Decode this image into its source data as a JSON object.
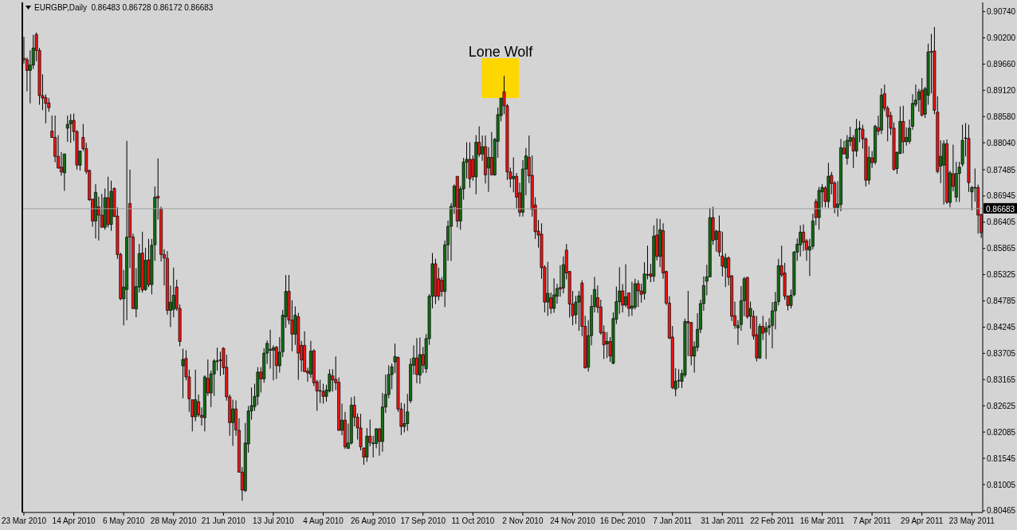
{
  "chart_data": {
    "type": "candlestick",
    "title": "EURGBP,Daily  0.86483 0.86728 0.86172 0.86683",
    "annotations": [
      "Lone Wolf"
    ],
    "colors": [
      "#f01414",
      "#f01414",
      "#116e11",
      "#116e11",
      "#f01414",
      "#f01414",
      "#f01414",
      "#f01414",
      "#f01414",
      "#f01414",
      "#f01414",
      "#f01414",
      "#f01414",
      "#116e11",
      "#116e11",
      "#116e11",
      "#f01414",
      "#f01414",
      "#116e11",
      "#f01414",
      "#f01414",
      "#f01414",
      "#f01414",
      "#116e11",
      "#f01414",
      "#f01414",
      "#116e11",
      "#f01414",
      "#116e11",
      "#f01414",
      "#f01414",
      "#f01414",
      "#116e11",
      "#116e11",
      "#f01414",
      "#f01414",
      "#116e11",
      "#116e11",
      "#f01414",
      "#116e11",
      "#f01414",
      "#116e11",
      "#116e11",
      "#f01414",
      "#f01414",
      "#f01414",
      "#f01414",
      "#116e11",
      "#116e11",
      "#f01414",
      "#f01414",
      "#116e11",
      "#f01414",
      "#f01414",
      "#f01414",
      "#116e11",
      "#f01414",
      "#f01414",
      "#116e11",
      "#f01414",
      "#116e11",
      "#116e11",
      "#116e11",
      "#116e11",
      "#f01414",
      "#f01414",
      "#f01414",
      "#116e11",
      "#f01414",
      "#f01414",
      "#f01414",
      "#116e11",
      "#116e11",
      "#116e11",
      "#116e11",
      "#116e11",
      "#f01414",
      "#116e11",
      "#116e11",
      "#116e11",
      "#116e11",
      "#f01414",
      "#116e11",
      "#116e11",
      "#116e11",
      "#f01414",
      "#f01414",
      "#116e11",
      "#f01414",
      "#f01414",
      "#f01414",
      "#f01414",
      "#116e11",
      "#f01414",
      "#f01414",
      "#f01414",
      "#f01414",
      "#116e11",
      "#116e11",
      "#f01414",
      "#f01414",
      "#f01414",
      "#116e11",
      "#f01414",
      "#116e11",
      "#116e11",
      "#f01414",
      "#f01414",
      "#f01414",
      "#f01414",
      "#116e11",
      "#f01414",
      "#116e11",
      "#116e11",
      "#f01414",
      "#116e11",
      "#116e11",
      "#116e11",
      "#116e11",
      "#116e11",
      "#f01414",
      "#f01414",
      "#116e11",
      "#116e11",
      "#116e11",
      "#116e11",
      "#f01414",
      "#116e11",
      "#f01414",
      "#116e11",
      "#116e11",
      "#116e11",
      "#f01414",
      "#f01414",
      "#f01414",
      "#116e11",
      "#116e11",
      "#116e11",
      "#116e11",
      "#f01414",
      "#116e11",
      "#116e11",
      "#116e11",
      "#f01414",
      "#f01414",
      "#116e11",
      "#f01414",
      "#116e11",
      "#f01414",
      "#116e11",
      "#f01414",
      "#116e11",
      "#116e11",
      "#116e11",
      "#f01414",
      "#f01414",
      "#f01414",
      "#116e11",
      "#f01414",
      "#f01414",
      "#116e11",
      "#116e11",
      "#f01414",
      "#f01414",
      "#f01414",
      "#f01414",
      "#f01414",
      "#f01414",
      "#116e11",
      "#f01414",
      "#116e11",
      "#116e11",
      "#f01414",
      "#116e11",
      "#f01414",
      "#f01414",
      "#f01414",
      "#116e11",
      "#116e11",
      "#f01414",
      "#f01414",
      "#116e11",
      "#116e11",
      "#116e11",
      "#f01414",
      "#f01414",
      "#f01414",
      "#116e11",
      "#f01414",
      "#116e11",
      "#116e11",
      "#116e11",
      "#f01414",
      "#116e11",
      "#f01414",
      "#116e11",
      "#116e11",
      "#f01414",
      "#f01414",
      "#116e11",
      "#116e11",
      "#f01414",
      "#116e11",
      "#f01414",
      "#116e11",
      "#f01414",
      "#f01414",
      "#f01414",
      "#f01414",
      "#116e11",
      "#116e11",
      "#116e11",
      "#116e11",
      "#f01414",
      "#f01414",
      "#116e11",
      "#116e11",
      "#116e11",
      "#116e11",
      "#116e11",
      "#116e11",
      "#f01414",
      "#116e11",
      "#f01414",
      "#f01414",
      "#116e11",
      "#f01414",
      "#f01414",
      "#f01414",
      "#116e11",
      "#116e11",
      "#116e11",
      "#f01414",
      "#116e11",
      "#f01414",
      "#f01414",
      "#116e11",
      "#f01414",
      "#116e11",
      "#116e11",
      "#116e11",
      "#116e11",
      "#116e11",
      "#f01414",
      "#f01414",
      "#f01414",
      "#116e11",
      "#116e11",
      "#116e11",
      "#116e11",
      "#f01414",
      "#f01414",
      "#116e11",
      "#116e11",
      "#f01414",
      "#116e11",
      "#116e11",
      "#f01414",
      "#116e11",
      "#f01414",
      "#f01414",
      "#116e11",
      "#116e11",
      "#f01414",
      "#116e11",
      "#116e11",
      "#f01414",
      "#116e11",
      "#116e11",
      "#f01414",
      "#f01414",
      "#116e11",
      "#f01414",
      "#116e11",
      "#f01414",
      "#116e11",
      "#f01414",
      "#f01414",
      "#f01414",
      "#f01414",
      "#116e11",
      "#116e11",
      "#f01414",
      "#116e11",
      "#116e11",
      "#116e11",
      "#116e11",
      "#116e11",
      "#f01414",
      "#116e11",
      "#116e11",
      "#f01414",
      "#f01414",
      "#f01414",
      "#116e11",
      "#116e11",
      "#f01414",
      "#116e11",
      "#f01414",
      "#116e11",
      "#116e11",
      "#116e11",
      "#f01414",
      "#f01414",
      "#116e11",
      "#f01414",
      "#f01414",
      "#f01414"
    ],
    "ylim": [
      0.8043,
      0.9093
    ],
    "yticks": [
      {
        "value": 0.9074,
        "label": "0.90740"
      },
      {
        "value": 0.902,
        "label": "0.90200"
      },
      {
        "value": 0.8966,
        "label": "0.89660"
      },
      {
        "value": 0.8912,
        "label": "0.89120"
      },
      {
        "value": 0.8858,
        "label": "0.88580"
      },
      {
        "value": 0.8804,
        "label": "0.88040"
      },
      {
        "value": 0.87485,
        "label": "0.87485"
      },
      {
        "value": 0.86945,
        "label": "0.86945"
      },
      {
        "value": 0.86405,
        "label": "0.86405"
      },
      {
        "value": 0.85865,
        "label": "0.85865"
      },
      {
        "value": 0.85325,
        "label": "0.85325"
      },
      {
        "value": 0.84785,
        "label": "0.84785"
      },
      {
        "value": 0.84245,
        "label": "0.84245"
      },
      {
        "value": 0.83705,
        "label": "0.83705"
      },
      {
        "value": 0.83165,
        "label": "0.83165"
      },
      {
        "value": 0.82625,
        "label": "0.82625"
      },
      {
        "value": 0.82085,
        "label": "0.82085"
      },
      {
        "value": 0.81545,
        "label": "0.81545"
      },
      {
        "value": 0.81005,
        "label": "0.81005"
      },
      {
        "value": 0.80465,
        "label": "0.80465"
      }
    ],
    "ref_lines": [
      {
        "axis": "y",
        "value": 0.86683,
        "label": "0.86683",
        "color": "#a0a0a0"
      }
    ],
    "categories": [
      "23 Mar 2010",
      null,
      null,
      null,
      null,
      null,
      null,
      null,
      null,
      null,
      null,
      null,
      null,
      null,
      null,
      null,
      "14 Apr 2010",
      null,
      null,
      null,
      null,
      null,
      null,
      null,
      null,
      null,
      null,
      null,
      null,
      null,
      null,
      null,
      "6 May 2010",
      null,
      null,
      null,
      null,
      null,
      null,
      null,
      null,
      null,
      null,
      null,
      null,
      null,
      null,
      null,
      "28 May 2010",
      null,
      null,
      null,
      null,
      null,
      null,
      null,
      null,
      null,
      null,
      null,
      null,
      null,
      null,
      null,
      "21 Jun 2010",
      null,
      null,
      null,
      null,
      null,
      null,
      null,
      null,
      null,
      null,
      null,
      null,
      null,
      null,
      null,
      "13 Jul 2010",
      null,
      null,
      null,
      null,
      null,
      null,
      null,
      null,
      null,
      null,
      null,
      null,
      null,
      null,
      null,
      "4 Aug 2010",
      null,
      null,
      null,
      null,
      null,
      null,
      null,
      null,
      null,
      null,
      null,
      null,
      null,
      null,
      null,
      "26 Aug 2010",
      null,
      null,
      null,
      null,
      null,
      null,
      null,
      null,
      null,
      null,
      null,
      null,
      null,
      null,
      null,
      "17 Sep 2010",
      null,
      null,
      null,
      null,
      null,
      null,
      null,
      null,
      null,
      null,
      null,
      null,
      null,
      null,
      null,
      "11 Oct 2010",
      null,
      null,
      null,
      null,
      null,
      null,
      null,
      null,
      null,
      null,
      null,
      null,
      null,
      null,
      null,
      "2 Nov 2010",
      null,
      null,
      null,
      null,
      null,
      null,
      null,
      null,
      null,
      null,
      null,
      null,
      null,
      null,
      null,
      "24 Nov 2010",
      null,
      null,
      null,
      null,
      null,
      null,
      null,
      null,
      null,
      null,
      null,
      null,
      null,
      null,
      null,
      "16 Dec 2010",
      null,
      null,
      null,
      null,
      null,
      null,
      null,
      null,
      null,
      null,
      null,
      null,
      null,
      null,
      null,
      "7 Jan 2011",
      null,
      null,
      null,
      null,
      null,
      null,
      null,
      null,
      null,
      null,
      null,
      null,
      null,
      null,
      null,
      "31 Jan 2011",
      null,
      null,
      null,
      null,
      null,
      null,
      null,
      null,
      null,
      null,
      null,
      null,
      null,
      null,
      null,
      "22 Feb 2011",
      null,
      null,
      null,
      null,
      null,
      null,
      null,
      null,
      null,
      null,
      null,
      null,
      null,
      null,
      null,
      "16 Mar 2011",
      null,
      null,
      null,
      null,
      null,
      null,
      null,
      null,
      null,
      null,
      null,
      null,
      null,
      null,
      null,
      "7 Apr 2011",
      null,
      null,
      null,
      null,
      null,
      null,
      null,
      null,
      null,
      null,
      null,
      null,
      null,
      null,
      null,
      "29 Apr 2011",
      null,
      null,
      null,
      null,
      null,
      null,
      null,
      null,
      null,
      null,
      null,
      null,
      null,
      null,
      null,
      "23 May 2011",
      null,
      null,
      null
    ],
    "ohlc": [
      [
        0.8978,
        0.9022,
        0.8967,
        0.8975
      ],
      [
        0.8975,
        0.898,
        0.891,
        0.8953
      ],
      [
        0.8953,
        0.8994,
        0.8885,
        0.8964
      ],
      [
        0.8964,
        0.9026,
        0.8956,
        0.8999
      ],
      [
        0.9027,
        0.9031,
        0.8972,
        0.8994
      ],
      [
        0.8994,
        0.8999,
        0.8882,
        0.8901
      ],
      [
        0.8901,
        0.8945,
        0.8871,
        0.8896
      ],
      [
        0.8897,
        0.8904,
        0.8844,
        0.8885
      ],
      [
        0.8886,
        0.8896,
        0.8868,
        0.8876
      ],
      [
        0.8828,
        0.886,
        0.8814,
        0.8815
      ],
      [
        0.8815,
        0.886,
        0.8764,
        0.8776
      ],
      [
        0.8776,
        0.882,
        0.8751,
        0.8752
      ],
      [
        0.8754,
        0.8785,
        0.8736,
        0.8744
      ],
      [
        0.8742,
        0.8781,
        0.8705,
        0.8781
      ],
      [
        0.8834,
        0.886,
        0.8806,
        0.8842
      ],
      [
        0.8843,
        0.8863,
        0.8804,
        0.885
      ],
      [
        0.885,
        0.8864,
        0.8808,
        0.8827
      ],
      [
        0.8827,
        0.883,
        0.8749,
        0.8758
      ],
      [
        0.8758,
        0.8787,
        0.8747,
        0.8787
      ],
      [
        0.8815,
        0.8843,
        0.8787,
        0.8792
      ],
      [
        0.8792,
        0.8804,
        0.874,
        0.8745
      ],
      [
        0.8747,
        0.8749,
        0.8684,
        0.8687
      ],
      [
        0.8688,
        0.8688,
        0.8631,
        0.8643
      ],
      [
        0.8643,
        0.8719,
        0.8607,
        0.8702
      ],
      [
        0.8672,
        0.8693,
        0.8603,
        0.8655
      ],
      [
        0.8655,
        0.8699,
        0.863,
        0.863
      ],
      [
        0.863,
        0.871,
        0.8625,
        0.8691
      ],
      [
        0.8691,
        0.8734,
        0.863,
        0.8636
      ],
      [
        0.8636,
        0.8726,
        0.8623,
        0.8704
      ],
      [
        0.871,
        0.8712,
        0.8652,
        0.8652
      ],
      [
        0.8653,
        0.8671,
        0.8565,
        0.8574
      ],
      [
        0.8574,
        0.8578,
        0.848,
        0.8483
      ],
      [
        0.8483,
        0.8542,
        0.8428,
        0.8507
      ],
      [
        0.8502,
        0.8808,
        0.8439,
        0.861
      ],
      [
        0.8679,
        0.8749,
        0.8546,
        0.861
      ],
      [
        0.861,
        0.8617,
        0.8461,
        0.8463
      ],
      [
        0.8462,
        0.8546,
        0.8445,
        0.8508
      ],
      [
        0.8507,
        0.8596,
        0.8496,
        0.8576
      ],
      [
        0.8577,
        0.8621,
        0.8496,
        0.8501
      ],
      [
        0.8502,
        0.8588,
        0.8499,
        0.8562
      ],
      [
        0.8563,
        0.8606,
        0.8507,
        0.8512
      ],
      [
        0.8512,
        0.8606,
        0.8492,
        0.8593
      ],
      [
        0.8594,
        0.8714,
        0.8561,
        0.8692
      ],
      [
        0.8694,
        0.8772,
        0.8646,
        0.869
      ],
      [
        0.8668,
        0.8672,
        0.856,
        0.8574
      ],
      [
        0.8574,
        0.8585,
        0.851,
        0.8567
      ],
      [
        0.8566,
        0.8581,
        0.845,
        0.8459
      ],
      [
        0.8459,
        0.851,
        0.8425,
        0.8476
      ],
      [
        0.8461,
        0.8547,
        0.8445,
        0.849
      ],
      [
        0.8507,
        0.8522,
        0.8458,
        0.8463
      ],
      [
        0.8463,
        0.8471,
        0.8385,
        0.8395
      ],
      [
        0.8345,
        0.838,
        0.8278,
        0.8358
      ],
      [
        0.836,
        0.8377,
        0.8315,
        0.8322
      ],
      [
        0.8322,
        0.8337,
        0.825,
        0.8277
      ],
      [
        0.8275,
        0.8275,
        0.821,
        0.824
      ],
      [
        0.824,
        0.8337,
        0.8231,
        0.8275
      ],
      [
        0.8271,
        0.8286,
        0.824,
        0.8244
      ],
      [
        0.8243,
        0.8259,
        0.8222,
        0.8239
      ],
      [
        0.8238,
        0.8325,
        0.821,
        0.8322
      ],
      [
        0.8319,
        0.8358,
        0.8283,
        0.8289
      ],
      [
        0.8289,
        0.8335,
        0.826,
        0.8328
      ],
      [
        0.8328,
        0.8359,
        0.8283,
        0.8355
      ],
      [
        0.8354,
        0.8382,
        0.8335,
        0.8355
      ],
      [
        0.8356,
        0.8374,
        0.8324,
        0.8357
      ],
      [
        0.8381,
        0.8383,
        0.8327,
        0.8341
      ],
      [
        0.8342,
        0.8368,
        0.8273,
        0.8281
      ],
      [
        0.8281,
        0.8286,
        0.8201,
        0.8228
      ],
      [
        0.8228,
        0.8275,
        0.818,
        0.8256
      ],
      [
        0.8256,
        0.8274,
        0.8201,
        0.8213
      ],
      [
        0.8212,
        0.8237,
        0.8125,
        0.8126
      ],
      [
        0.8126,
        0.8136,
        0.8067,
        0.8089
      ],
      [
        0.8088,
        0.8227,
        0.8085,
        0.8186
      ],
      [
        0.8184,
        0.8262,
        0.8166,
        0.8252
      ],
      [
        0.8252,
        0.83,
        0.8234,
        0.8263
      ],
      [
        0.8261,
        0.8308,
        0.8252,
        0.8282
      ],
      [
        0.8282,
        0.8342,
        0.8264,
        0.8332
      ],
      [
        0.8332,
        0.8342,
        0.829,
        0.8318
      ],
      [
        0.8318,
        0.8381,
        0.831,
        0.8371
      ],
      [
        0.8371,
        0.8397,
        0.8349,
        0.8391
      ],
      [
        0.8377,
        0.8419,
        0.8339,
        0.8379
      ],
      [
        0.8377,
        0.8387,
        0.8315,
        0.8382
      ],
      [
        0.8383,
        0.8386,
        0.8318,
        0.8345
      ],
      [
        0.8345,
        0.8404,
        0.8331,
        0.8373
      ],
      [
        0.8374,
        0.846,
        0.8363,
        0.8449
      ],
      [
        0.8446,
        0.8532,
        0.8423,
        0.8498
      ],
      [
        0.8498,
        0.8532,
        0.843,
        0.8439
      ],
      [
        0.8439,
        0.848,
        0.8375,
        0.841
      ],
      [
        0.841,
        0.8467,
        0.8388,
        0.8449
      ],
      [
        0.8446,
        0.8454,
        0.8316,
        0.8371
      ],
      [
        0.8387,
        0.8396,
        0.8333,
        0.8357
      ],
      [
        0.8387,
        0.8416,
        0.8332,
        0.8333
      ],
      [
        0.8334,
        0.8341,
        0.8312,
        0.833
      ],
      [
        0.8328,
        0.8396,
        0.832,
        0.8375
      ],
      [
        0.8376,
        0.8379,
        0.8303,
        0.831
      ],
      [
        0.8312,
        0.8316,
        0.8252,
        0.8293
      ],
      [
        0.8294,
        0.8316,
        0.8268,
        0.8293
      ],
      [
        0.8292,
        0.8308,
        0.8267,
        0.8282
      ],
      [
        0.8282,
        0.8306,
        0.8271,
        0.8295
      ],
      [
        0.8293,
        0.8338,
        0.829,
        0.8328
      ],
      [
        0.8324,
        0.8338,
        0.8292,
        0.8316
      ],
      [
        0.8317,
        0.8364,
        0.8295,
        0.831
      ],
      [
        0.8311,
        0.8321,
        0.8211,
        0.8212
      ],
      [
        0.8212,
        0.8267,
        0.8202,
        0.8233
      ],
      [
        0.8233,
        0.825,
        0.8174,
        0.8178
      ],
      [
        0.8175,
        0.8226,
        0.8174,
        0.8186
      ],
      [
        0.8186,
        0.828,
        0.8183,
        0.8264
      ],
      [
        0.8264,
        0.8282,
        0.822,
        0.8239
      ],
      [
        0.8239,
        0.8247,
        0.8193,
        0.8217
      ],
      [
        0.8217,
        0.8246,
        0.8171,
        0.8178
      ],
      [
        0.8176,
        0.8176,
        0.8141,
        0.8157
      ],
      [
        0.8157,
        0.8217,
        0.8147,
        0.82
      ],
      [
        0.82,
        0.8234,
        0.8179,
        0.8187
      ],
      [
        0.8186,
        0.8201,
        0.8156,
        0.8186
      ],
      [
        0.8185,
        0.8217,
        0.8175,
        0.8215
      ],
      [
        0.8215,
        0.8217,
        0.816,
        0.8189
      ],
      [
        0.8189,
        0.8289,
        0.8168,
        0.826
      ],
      [
        0.826,
        0.8327,
        0.8248,
        0.8286
      ],
      [
        0.8286,
        0.8346,
        0.8278,
        0.8327
      ],
      [
        0.8327,
        0.835,
        0.8297,
        0.8343
      ],
      [
        0.8353,
        0.8391,
        0.833,
        0.8364
      ],
      [
        0.8362,
        0.8364,
        0.825,
        0.8256
      ],
      [
        0.8256,
        0.8269,
        0.8202,
        0.822
      ],
      [
        0.822,
        0.8267,
        0.8208,
        0.8226
      ],
      [
        0.8226,
        0.8287,
        0.8211,
        0.825
      ],
      [
        0.8273,
        0.836,
        0.8268,
        0.8348
      ],
      [
        0.8346,
        0.8387,
        0.8327,
        0.8361
      ],
      [
        0.8361,
        0.8402,
        0.8309,
        0.8327
      ],
      [
        0.8326,
        0.8403,
        0.8308,
        0.8368
      ],
      [
        0.8368,
        0.8384,
        0.833,
        0.8346
      ],
      [
        0.8339,
        0.841,
        0.833,
        0.8401
      ],
      [
        0.8401,
        0.8492,
        0.8388,
        0.8488
      ],
      [
        0.8488,
        0.8577,
        0.8463,
        0.8555
      ],
      [
        0.8555,
        0.8565,
        0.8472,
        0.8488
      ],
      [
        0.8524,
        0.8547,
        0.848,
        0.8488
      ],
      [
        0.8521,
        0.8528,
        0.8487,
        0.8498
      ],
      [
        0.8498,
        0.8603,
        0.8466,
        0.8594
      ],
      [
        0.8594,
        0.8644,
        0.8561,
        0.8632
      ],
      [
        0.8632,
        0.868,
        0.8561,
        0.8673
      ],
      [
        0.8673,
        0.8718,
        0.8658,
        0.8715
      ],
      [
        0.8735,
        0.8735,
        0.863,
        0.8643
      ],
      [
        0.8643,
        0.8715,
        0.8625,
        0.8709
      ],
      [
        0.8709,
        0.8773,
        0.8687,
        0.8764
      ],
      [
        0.8764,
        0.8805,
        0.8731,
        0.877
      ],
      [
        0.877,
        0.8805,
        0.8711,
        0.873
      ],
      [
        0.877,
        0.8778,
        0.8726,
        0.8734
      ],
      [
        0.8734,
        0.882,
        0.8698,
        0.8805
      ],
      [
        0.8805,
        0.8838,
        0.8775,
        0.878
      ],
      [
        0.8781,
        0.8819,
        0.8767,
        0.8796
      ],
      [
        0.8796,
        0.8819,
        0.872,
        0.8738
      ],
      [
        0.8752,
        0.8795,
        0.8703,
        0.8774
      ],
      [
        0.8774,
        0.8826,
        0.8737,
        0.8738
      ],
      [
        0.8738,
        0.8814,
        0.8736,
        0.8811
      ],
      [
        0.8807,
        0.8877,
        0.8773,
        0.8862
      ],
      [
        0.886,
        0.8896,
        0.8848,
        0.8896
      ],
      [
        0.8909,
        0.8942,
        0.8863,
        0.888
      ],
      [
        0.888,
        0.8884,
        0.8727,
        0.8744
      ],
      [
        0.8744,
        0.8753,
        0.8712,
        0.873
      ],
      [
        0.873,
        0.8774,
        0.8702,
        0.8735
      ],
      [
        0.8735,
        0.8742,
        0.8669,
        0.8692
      ],
      [
        0.8701,
        0.8722,
        0.8652,
        0.8661
      ],
      [
        0.8661,
        0.8768,
        0.8652,
        0.875
      ],
      [
        0.875,
        0.8793,
        0.8696,
        0.8777
      ],
      [
        0.8774,
        0.8819,
        0.8721,
        0.8736
      ],
      [
        0.8737,
        0.8778,
        0.8652,
        0.8667
      ],
      [
        0.8676,
        0.8692,
        0.8606,
        0.8621
      ],
      [
        0.8622,
        0.8645,
        0.8588,
        0.8614
      ],
      [
        0.8616,
        0.8638,
        0.8524,
        0.8547
      ],
      [
        0.8548,
        0.8552,
        0.8455,
        0.8476
      ],
      [
        0.8476,
        0.8559,
        0.8448,
        0.8494
      ],
      [
        0.8485,
        0.8496,
        0.8452,
        0.8463
      ],
      [
        0.8463,
        0.8525,
        0.8454,
        0.8491
      ],
      [
        0.8488,
        0.8514,
        0.8473,
        0.8504
      ],
      [
        0.8506,
        0.8552,
        0.8487,
        0.8503
      ],
      [
        0.8505,
        0.857,
        0.8494,
        0.8553
      ],
      [
        0.8583,
        0.8596,
        0.8523,
        0.8536
      ],
      [
        0.8539,
        0.854,
        0.8444,
        0.8472
      ],
      [
        0.8472,
        0.8499,
        0.8428,
        0.8448
      ],
      [
        0.845,
        0.8489,
        0.8431,
        0.8476
      ],
      [
        0.8476,
        0.8499,
        0.8417,
        0.8489
      ],
      [
        0.8515,
        0.8521,
        0.8406,
        0.8426
      ],
      [
        0.8426,
        0.8448,
        0.8339,
        0.8341
      ],
      [
        0.8342,
        0.8439,
        0.8333,
        0.8407
      ],
      [
        0.8407,
        0.8491,
        0.8387,
        0.8467
      ],
      [
        0.8467,
        0.8528,
        0.8455,
        0.8502
      ],
      [
        0.8485,
        0.851,
        0.8454,
        0.8465
      ],
      [
        0.8466,
        0.8481,
        0.8409,
        0.8413
      ],
      [
        0.8414,
        0.8428,
        0.8359,
        0.8388
      ],
      [
        0.839,
        0.8414,
        0.8361,
        0.8395
      ],
      [
        0.8395,
        0.8404,
        0.8353,
        0.8365
      ],
      [
        0.835,
        0.8455,
        0.8348,
        0.8442
      ],
      [
        0.8441,
        0.8508,
        0.8431,
        0.8477
      ],
      [
        0.8477,
        0.8548,
        0.8452,
        0.8499
      ],
      [
        0.8499,
        0.8513,
        0.8455,
        0.847
      ],
      [
        0.847,
        0.8554,
        0.8466,
        0.8487
      ],
      [
        0.8495,
        0.8496,
        0.8446,
        0.8463
      ],
      [
        0.8463,
        0.8518,
        0.8448,
        0.8468
      ],
      [
        0.8466,
        0.8524,
        0.8461,
        0.8514
      ],
      [
        0.8514,
        0.8521,
        0.8466,
        0.8499
      ],
      [
        0.8499,
        0.8514,
        0.8475,
        0.8492
      ],
      [
        0.8494,
        0.8558,
        0.8481,
        0.8534
      ],
      [
        0.8533,
        0.8592,
        0.8523,
        0.8533
      ],
      [
        0.8534,
        0.8555,
        0.8517,
        0.8529
      ],
      [
        0.8529,
        0.8634,
        0.8518,
        0.8612
      ],
      [
        0.8614,
        0.8648,
        0.8562,
        0.857
      ],
      [
        0.857,
        0.8647,
        0.8548,
        0.8625
      ],
      [
        0.8623,
        0.8638,
        0.8524,
        0.8536
      ],
      [
        0.8539,
        0.8541,
        0.847,
        0.8474
      ],
      [
        0.8474,
        0.8488,
        0.84,
        0.8402
      ],
      [
        0.8404,
        0.8427,
        0.8297,
        0.83
      ],
      [
        0.8297,
        0.834,
        0.8282,
        0.8313
      ],
      [
        0.8315,
        0.8338,
        0.8299,
        0.8315
      ],
      [
        0.8313,
        0.8337,
        0.8299,
        0.8329
      ],
      [
        0.8326,
        0.8442,
        0.8321,
        0.8436
      ],
      [
        0.8436,
        0.8499,
        0.8365,
        0.8433
      ],
      [
        0.8434,
        0.8435,
        0.8346,
        0.8365
      ],
      [
        0.8365,
        0.8395,
        0.8331,
        0.8384
      ],
      [
        0.8383,
        0.8453,
        0.8375,
        0.842
      ],
      [
        0.842,
        0.8481,
        0.8412,
        0.8473
      ],
      [
        0.8473,
        0.8529,
        0.8458,
        0.851
      ],
      [
        0.8519,
        0.8553,
        0.849,
        0.8528
      ],
      [
        0.8528,
        0.867,
        0.8527,
        0.865
      ],
      [
        0.865,
        0.8672,
        0.8594,
        0.8603
      ],
      [
        0.8605,
        0.8625,
        0.858,
        0.8622
      ],
      [
        0.8622,
        0.8654,
        0.857,
        0.8579
      ],
      [
        0.8571,
        0.8621,
        0.8529,
        0.855
      ],
      [
        0.8547,
        0.8576,
        0.8507,
        0.8567
      ],
      [
        0.8567,
        0.857,
        0.851,
        0.8527
      ],
      [
        0.853,
        0.8532,
        0.8437,
        0.8447
      ],
      [
        0.8448,
        0.8477,
        0.8421,
        0.8428
      ],
      [
        0.8423,
        0.8439,
        0.8388,
        0.8428
      ],
      [
        0.843,
        0.8509,
        0.8417,
        0.8479
      ],
      [
        0.8479,
        0.8528,
        0.8447,
        0.8524
      ],
      [
        0.8527,
        0.8528,
        0.8442,
        0.8446
      ],
      [
        0.8447,
        0.8477,
        0.8421,
        0.8463
      ],
      [
        0.8447,
        0.8459,
        0.8399,
        0.8406
      ],
      [
        0.8409,
        0.8448,
        0.8354,
        0.8361
      ],
      [
        0.8361,
        0.8432,
        0.8359,
        0.8426
      ],
      [
        0.8426,
        0.8448,
        0.8398,
        0.8412
      ],
      [
        0.8415,
        0.8435,
        0.8359,
        0.8423
      ],
      [
        0.8424,
        0.8443,
        0.8408,
        0.8427
      ],
      [
        0.8428,
        0.8476,
        0.8381,
        0.8458
      ],
      [
        0.8458,
        0.8497,
        0.842,
        0.8476
      ],
      [
        0.8477,
        0.8565,
        0.8469,
        0.8551
      ],
      [
        0.8551,
        0.8592,
        0.8528,
        0.8532
      ],
      [
        0.8536,
        0.8557,
        0.8481,
        0.8488
      ],
      [
        0.8488,
        0.849,
        0.8459,
        0.8469
      ],
      [
        0.8469,
        0.8502,
        0.8463,
        0.849
      ],
      [
        0.8491,
        0.8581,
        0.8488,
        0.8579
      ],
      [
        0.8579,
        0.8607,
        0.8561,
        0.8595
      ],
      [
        0.8594,
        0.8634,
        0.857,
        0.862
      ],
      [
        0.862,
        0.8636,
        0.8581,
        0.8599
      ],
      [
        0.8602,
        0.8606,
        0.8561,
        0.8584
      ],
      [
        0.8583,
        0.8606,
        0.853,
        0.859
      ],
      [
        0.8591,
        0.8658,
        0.8585,
        0.8643
      ],
      [
        0.8683,
        0.8688,
        0.8634,
        0.865
      ],
      [
        0.865,
        0.8713,
        0.8625,
        0.8706
      ],
      [
        0.8703,
        0.8719,
        0.8671,
        0.8712
      ],
      [
        0.8711,
        0.8715,
        0.8671,
        0.8683
      ],
      [
        0.8683,
        0.8763,
        0.867,
        0.8735
      ],
      [
        0.8737,
        0.8744,
        0.8698,
        0.872
      ],
      [
        0.8721,
        0.8725,
        0.8659,
        0.8671
      ],
      [
        0.8671,
        0.8725,
        0.8652,
        0.8678
      ],
      [
        0.8677,
        0.8812,
        0.8663,
        0.8794
      ],
      [
        0.8793,
        0.8808,
        0.878,
        0.8781
      ],
      [
        0.8772,
        0.882,
        0.8759,
        0.8809
      ],
      [
        0.8807,
        0.8837,
        0.8797,
        0.8815
      ],
      [
        0.8814,
        0.882,
        0.8752,
        0.8787
      ],
      [
        0.8787,
        0.8853,
        0.8775,
        0.8832
      ],
      [
        0.8832,
        0.8849,
        0.8805,
        0.8834
      ],
      [
        0.8832,
        0.8841,
        0.8792,
        0.8812
      ],
      [
        0.8812,
        0.8815,
        0.8714,
        0.8727
      ],
      [
        0.8727,
        0.8797,
        0.8718,
        0.8774
      ],
      [
        0.8773,
        0.8787,
        0.8752,
        0.8763
      ],
      [
        0.8764,
        0.8841,
        0.8759,
        0.8838
      ],
      [
        0.8835,
        0.886,
        0.882,
        0.8828
      ],
      [
        0.883,
        0.8916,
        0.8822,
        0.8902
      ],
      [
        0.8905,
        0.8924,
        0.8869,
        0.8875
      ],
      [
        0.8875,
        0.888,
        0.8807,
        0.8858
      ],
      [
        0.886,
        0.8868,
        0.882,
        0.8834
      ],
      [
        0.8834,
        0.8846,
        0.8747,
        0.8749
      ],
      [
        0.8751,
        0.8786,
        0.874,
        0.8784
      ],
      [
        0.8782,
        0.8879,
        0.8781,
        0.8848
      ],
      [
        0.8848,
        0.888,
        0.8782,
        0.8806
      ],
      [
        0.8806,
        0.8836,
        0.8798,
        0.8815
      ],
      [
        0.8807,
        0.8852,
        0.8802,
        0.8834
      ],
      [
        0.8838,
        0.8904,
        0.8831,
        0.8885
      ],
      [
        0.8883,
        0.8924,
        0.8878,
        0.8892
      ],
      [
        0.8893,
        0.8915,
        0.8868,
        0.8909
      ],
      [
        0.8912,
        0.8937,
        0.8858,
        0.8861
      ],
      [
        0.8863,
        0.8919,
        0.8855,
        0.8915
      ],
      [
        0.8902,
        0.9008,
        0.8882,
        0.8991
      ],
      [
        0.8992,
        0.9028,
        0.8906,
        0.8991
      ],
      [
        0.8993,
        0.9042,
        0.8863,
        0.8871
      ],
      [
        0.8867,
        0.89,
        0.8741,
        0.8745
      ],
      [
        0.8756,
        0.8809,
        0.8721,
        0.8776
      ],
      [
        0.8758,
        0.8809,
        0.8677,
        0.8802
      ],
      [
        0.8802,
        0.8811,
        0.8678,
        0.8682
      ],
      [
        0.8681,
        0.8747,
        0.8671,
        0.8742
      ],
      [
        0.874,
        0.88,
        0.8704,
        0.8714
      ],
      [
        0.8692,
        0.8765,
        0.8682,
        0.8741
      ],
      [
        0.8741,
        0.8765,
        0.8682,
        0.8754
      ],
      [
        0.876,
        0.8841,
        0.8755,
        0.8809
      ],
      [
        0.8814,
        0.8845,
        0.8776,
        0.8813
      ],
      [
        0.8813,
        0.8841,
        0.8703,
        0.8722
      ],
      [
        0.8703,
        0.8715,
        0.8665,
        0.8712
      ],
      [
        0.8712,
        0.8751,
        0.8683,
        0.8711
      ],
      [
        0.8712,
        0.8718,
        0.8617,
        0.8655
      ],
      [
        0.8656,
        0.8658,
        0.8608,
        0.8619
      ]
    ]
  }
}
